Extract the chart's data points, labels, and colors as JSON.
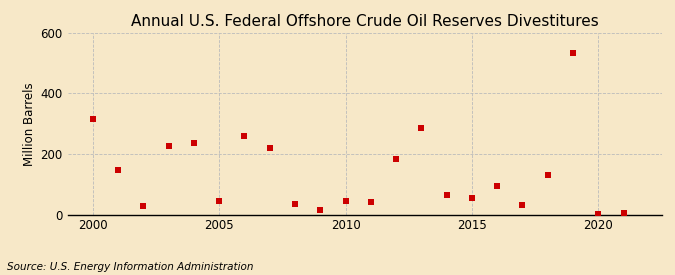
{
  "title": "Annual U.S. Federal Offshore Crude Oil Reserves Divestitures",
  "ylabel": "Million Barrels",
  "source": "Source: U.S. Energy Information Administration",
  "background_color": "#f7e8c8",
  "plot_bg_color": "#f7e8c8",
  "marker_color": "#cc0000",
  "marker": "s",
  "marker_size": 18,
  "xlim": [
    1999.0,
    2022.5
  ],
  "ylim": [
    0,
    600
  ],
  "yticks": [
    0,
    200,
    400,
    600
  ],
  "xticks": [
    2000,
    2005,
    2010,
    2015,
    2020
  ],
  "grid_color": "#bbbbbb",
  "title_fontsize": 11,
  "label_fontsize": 8.5,
  "tick_fontsize": 8.5,
  "source_fontsize": 7.5,
  "years": [
    2000,
    2001,
    2002,
    2003,
    2004,
    2005,
    2006,
    2007,
    2008,
    2009,
    2010,
    2011,
    2012,
    2013,
    2014,
    2015,
    2016,
    2017,
    2018,
    2019,
    2020,
    2021
  ],
  "values": [
    315,
    148,
    28,
    225,
    235,
    45,
    260,
    220,
    35,
    15,
    45,
    40,
    185,
    285,
    65,
    55,
    95,
    30,
    130,
    535,
    3,
    5
  ]
}
